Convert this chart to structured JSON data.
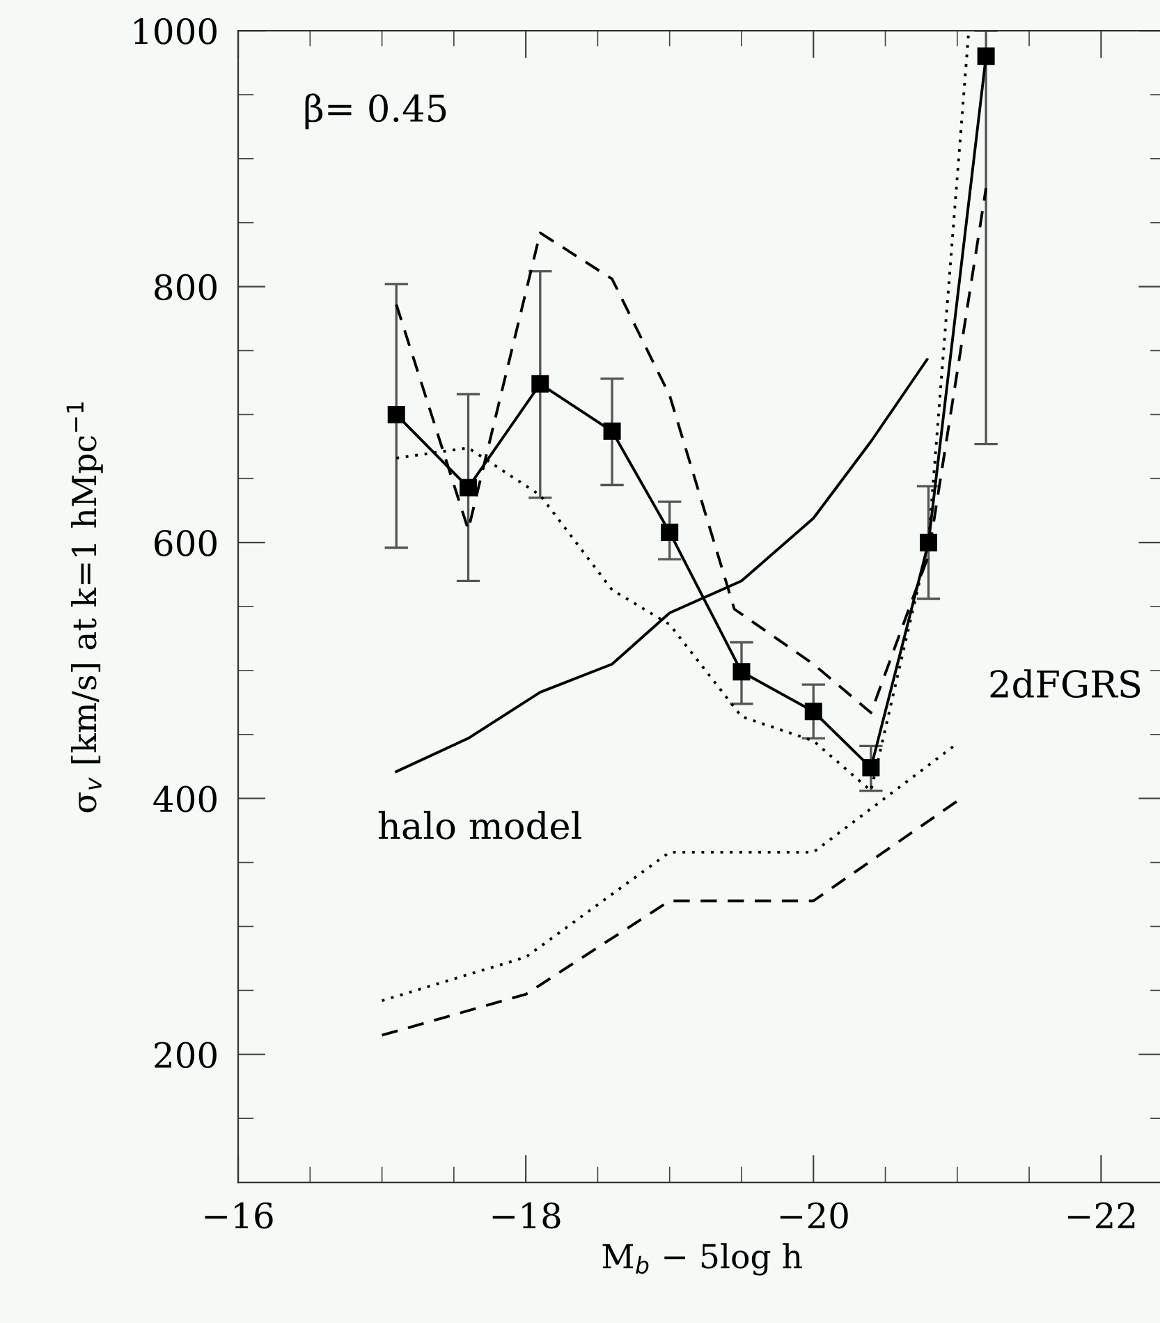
{
  "chart_data": {
    "type": "line",
    "xlabel": "M$_{b}$ − 5log h",
    "ylabel": "σ$_{v}$ [km/s] at k=1 hMpc$^{−1}$",
    "xlim": [
      -16,
      -22.45
    ],
    "ylim": [
      100,
      1000
    ],
    "xticks": [
      -16,
      {
        "value": -16.5,
        "label": null
      },
      {
        "value": -17,
        "label": null
      },
      {
        "value": -17.5,
        "label": null
      },
      -18,
      {
        "value": -18.5,
        "label": null
      },
      {
        "value": -19,
        "label": null
      },
      {
        "value": -19.5,
        "label": null
      },
      -20,
      {
        "value": -20.5,
        "label": null
      },
      {
        "value": -21,
        "label": null
      },
      {
        "value": -21.5,
        "label": null
      },
      -22
    ],
    "yticks": [
      {
        "value": 150,
        "label": null
      },
      200,
      {
        "value": 250,
        "label": null
      },
      {
        "value": 300,
        "label": null
      },
      {
        "value": 350,
        "label": null
      },
      400,
      {
        "value": 450,
        "label": null
      },
      {
        "value": 500,
        "label": null
      },
      {
        "value": 550,
        "label": null
      },
      600,
      {
        "value": 650,
        "label": null
      },
      {
        "value": 700,
        "label": null
      },
      {
        "value": 750,
        "label": null
      },
      800,
      {
        "value": 850,
        "label": null
      },
      {
        "value": 900,
        "label": null
      },
      {
        "value": 950,
        "label": null
      },
      1000
    ],
    "grid": false,
    "legend": false,
    "series": [
      {
        "color": "#000000",
        "marker": "square",
        "line_style": "solid",
        "x": [
          -17.1,
          -17.6,
          -18.1,
          -18.6,
          -19.0,
          -19.5,
          -20.0,
          -20.4,
          -20.8,
          -21.2
        ],
        "values": [
          700,
          643,
          724,
          687,
          608,
          499,
          468,
          424,
          600,
          980
        ],
        "errors": [
          [
            596,
            802
          ],
          [
            570,
            716
          ],
          [
            635,
            812
          ],
          [
            645,
            728
          ],
          [
            587,
            632
          ],
          [
            474,
            522
          ],
          [
            447,
            489
          ],
          [
            406,
            441
          ],
          [
            556,
            644
          ],
          [
            677,
            1000
          ]
        ]
      },
      {
        "color": "#000000",
        "marker": "none",
        "line_style": "dashed",
        "x": [
          -17.1,
          -17.6,
          -18.1,
          -18.6,
          -19.0,
          -19.45,
          -20.0,
          -20.4,
          -20.8,
          -21.2
        ],
        "values": [
          786,
          610,
          842,
          806,
          715,
          548,
          505,
          467,
          590,
          877
        ]
      },
      {
        "color": "#000000",
        "marker": "none",
        "line_style": "dotted",
        "x": [
          -17.1,
          -17.6,
          -18.1,
          -18.6,
          -19.0,
          -19.5,
          -20.0,
          -20.4,
          -20.8,
          -21.08
        ],
        "values": [
          666,
          674,
          637,
          563,
          536,
          464,
          445,
          406,
          600,
          1000
        ]
      },
      {
        "color": "#000000",
        "marker": "none",
        "line_style": "solid",
        "x": [
          -17.1,
          -17.6,
          -18.1,
          -18.6,
          -19.0,
          -19.5,
          -20.0,
          -20.4,
          -20.79
        ],
        "values": [
          421,
          447,
          483,
          505,
          545,
          570,
          619,
          679,
          743
        ]
      },
      {
        "color": "#000000",
        "marker": "none",
        "line_style": "dotted",
        "x": [
          -17.0,
          -18.0,
          -19.0,
          -20.0,
          -21.0
        ],
        "values": [
          242,
          276,
          358,
          358,
          443
        ]
      },
      {
        "color": "#000000",
        "marker": "none",
        "line_style": "dashed",
        "x": [
          -17.0,
          -18.0,
          -19.0,
          -20.0,
          -21.0
        ],
        "values": [
          215,
          247,
          320,
          320,
          398
        ]
      }
    ],
    "annotations": [
      "β= 0.45",
      "halo model",
      "2dFGRS"
    ]
  }
}
